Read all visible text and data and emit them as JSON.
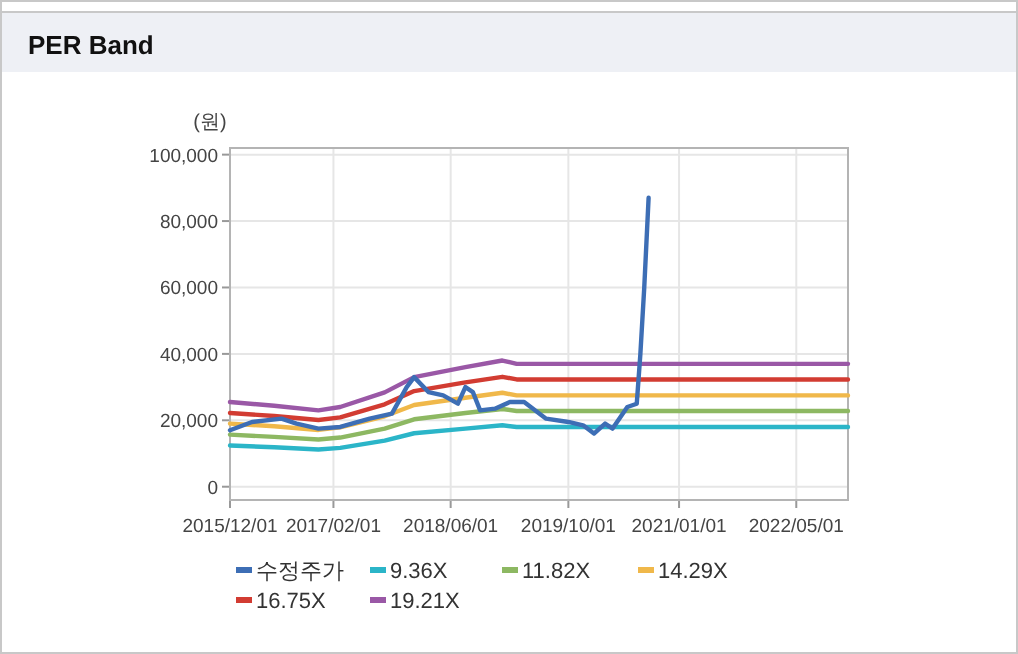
{
  "chart_data": {
    "type": "line",
    "title": "PER Band",
    "ylabel": "(원)",
    "xlim": [
      "2015-12-01",
      "2022-12-01"
    ],
    "xticks": [
      {
        "value": "2015-12-01",
        "label": "2015/12/01"
      },
      {
        "value": "2017-02-01",
        "label": "2017/02/01"
      },
      {
        "value": "2018-06-01",
        "label": "2018/06/01"
      },
      {
        "value": "2019-10-01",
        "label": "2019/10/01"
      },
      {
        "value": "2021-01-01",
        "label": "2021/01/01"
      },
      {
        "value": "2022-05-01",
        "label": "2022/05/01"
      }
    ],
    "ylim": [
      -4000,
      102000
    ],
    "yticks": [
      0,
      {
        "value": 20000,
        "label": "20,000"
      },
      {
        "value": 40000,
        "label": "40,000"
      },
      {
        "value": 60000,
        "label": "60,000"
      },
      {
        "value": 80000,
        "label": "80,000"
      },
      {
        "value": 100000,
        "label": "100,000"
      }
    ],
    "grid": true,
    "legend": "bottom",
    "marker": "none",
    "line_style": "solid",
    "series": [
      {
        "name": "수정주가",
        "color": "#3d6eb5",
        "x": [
          "2015-12-01",
          "2016-03-01",
          "2016-07-01",
          "2016-09-01",
          "2016-12-01",
          "2017-03-01",
          "2017-07-01",
          "2017-10-01",
          "2017-12-01",
          "2018-01-01",
          "2018-03-01",
          "2018-05-01",
          "2018-07-01",
          "2018-08-01",
          "2018-09-01",
          "2018-10-01",
          "2018-12-01",
          "2019-02-01",
          "2019-04-01",
          "2019-07-01",
          "2019-10-01",
          "2019-12-01",
          "2020-01-15",
          "2020-03-01",
          "2020-04-01",
          "2020-06-01",
          "2020-07-10",
          "2020-07-25",
          "2020-08-10",
          "2020-08-28"
        ],
        "values": [
          17000,
          19500,
          20500,
          19000,
          17500,
          18000,
          20500,
          22000,
          30000,
          33000,
          28500,
          27500,
          25000,
          30000,
          28500,
          23000,
          23500,
          25500,
          25500,
          20500,
          19500,
          18500,
          16000,
          19000,
          17500,
          24000,
          25000,
          40000,
          60000,
          87000
        ]
      },
      {
        "name": "9.36X",
        "color": "#2bb5c8",
        "x": [
          "2015-12-01",
          "2016-06-01",
          "2016-12-01",
          "2017-03-01",
          "2017-09-01",
          "2018-01-01",
          "2018-08-01",
          "2019-01-01",
          "2019-03-01",
          "2022-12-01"
        ],
        "values": [
          12400,
          11900,
          11200,
          11700,
          13900,
          16100,
          17500,
          18500,
          18000,
          18000
        ]
      },
      {
        "name": "11.82X",
        "color": "#8db862",
        "x": [
          "2015-12-01",
          "2016-06-01",
          "2016-12-01",
          "2017-03-01",
          "2017-09-01",
          "2018-01-01",
          "2018-08-01",
          "2019-01-01",
          "2019-03-01",
          "2022-12-01"
        ],
        "values": [
          15700,
          15000,
          14200,
          14800,
          17500,
          20300,
          22200,
          23400,
          22800,
          22800
        ]
      },
      {
        "name": "14.29X",
        "color": "#f0b84a",
        "x": [
          "2015-12-01",
          "2016-06-01",
          "2016-12-01",
          "2017-03-01",
          "2017-09-01",
          "2018-01-01",
          "2018-08-01",
          "2019-01-01",
          "2019-03-01",
          "2022-12-01"
        ],
        "values": [
          19000,
          18200,
          17100,
          17900,
          21200,
          24600,
          26800,
          28300,
          27500,
          27500
        ]
      },
      {
        "name": "16.75X",
        "color": "#d23c32",
        "x": [
          "2015-12-01",
          "2016-06-01",
          "2016-12-01",
          "2017-03-01",
          "2017-09-01",
          "2018-01-01",
          "2018-08-01",
          "2019-01-01",
          "2019-03-01",
          "2022-12-01"
        ],
        "values": [
          22200,
          21300,
          20100,
          20900,
          24800,
          28800,
          31400,
          33100,
          32300,
          32300
        ]
      },
      {
        "name": "19.21X",
        "color": "#9a58a6",
        "x": [
          "2015-12-01",
          "2016-06-01",
          "2016-12-01",
          "2017-03-01",
          "2017-09-01",
          "2018-01-01",
          "2018-08-01",
          "2019-01-01",
          "2019-03-01",
          "2022-12-01"
        ],
        "values": [
          25500,
          24400,
          23000,
          24000,
          28400,
          33000,
          36000,
          38000,
          37000,
          37000
        ]
      }
    ]
  }
}
